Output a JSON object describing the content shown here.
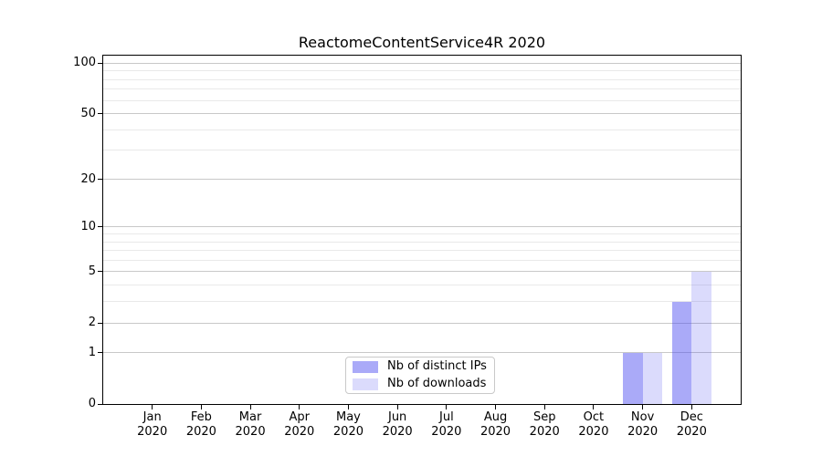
{
  "chart_data": {
    "type": "bar",
    "title": "ReactomeContentService4R 2020",
    "x": [
      "Jan 2020",
      "Feb 2020",
      "Mar 2020",
      "Apr 2020",
      "May 2020",
      "Jun 2020",
      "Jul 2020",
      "Aug 2020",
      "Sep 2020",
      "Oct 2020",
      "Nov 2020",
      "Dec 2020"
    ],
    "series": [
      {
        "name": "Nb of distinct IPs",
        "color": "rgba(66,66,240,0.45)",
        "values": [
          0,
          0,
          0,
          0,
          0,
          0,
          0,
          0,
          0,
          0,
          1,
          3
        ]
      },
      {
        "name": "Nb of downloads",
        "color": "rgba(66,66,240,0.19)",
        "values": [
          0,
          0,
          0,
          0,
          0,
          0,
          0,
          0,
          0,
          0,
          1,
          5
        ]
      }
    ],
    "y_axis": {
      "scale": "log1p",
      "major_ticks": [
        0,
        1,
        2,
        5,
        10,
        20,
        50,
        100
      ],
      "minor_ticks": [
        3,
        4,
        6,
        7,
        8,
        9,
        30,
        40,
        60,
        70,
        80,
        90
      ],
      "range": [
        0,
        111
      ]
    },
    "xlabel": "",
    "ylabel": "",
    "grid": true,
    "legend_position": "inside bottom-center",
    "bar_width_fraction": 0.4
  },
  "colors": {
    "major_gridline": "#c8c8c8",
    "minor_gridline": "#e9e9e9",
    "axis_frame": "#000000",
    "legend_border": "#c9c9c9",
    "background": "#ffffff"
  }
}
